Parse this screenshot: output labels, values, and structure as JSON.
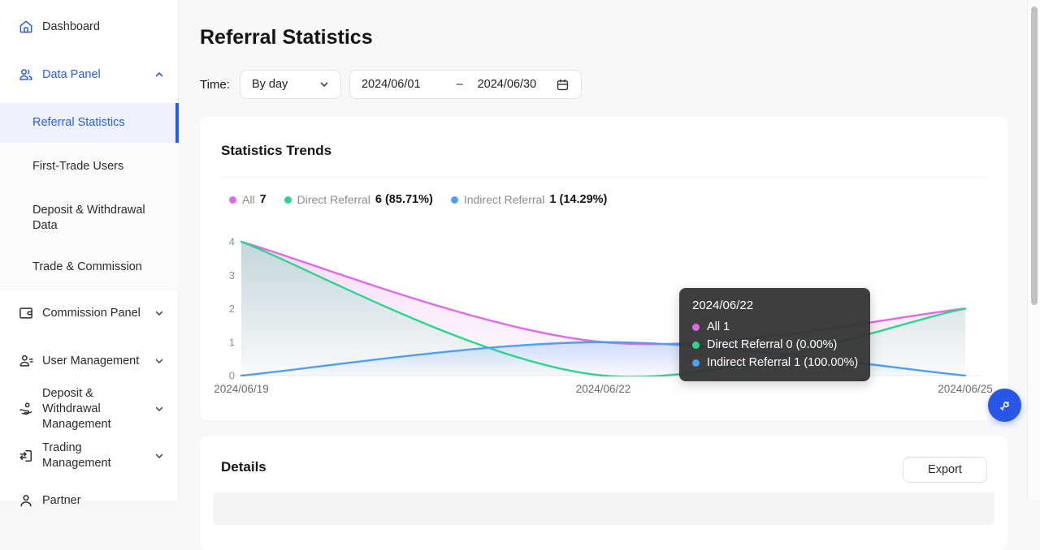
{
  "sidebar": {
    "items": [
      {
        "label": "Dashboard",
        "icon": "home-icon"
      },
      {
        "label": "Data Panel",
        "icon": "users-icon",
        "expanded": true
      },
      {
        "label": "Commission Panel",
        "icon": "panel-icon"
      },
      {
        "label": "User Management",
        "icon": "user-settings-icon"
      },
      {
        "label": "Deposit & Withdrawal Management",
        "icon": "hand-coin-icon"
      },
      {
        "label": "Trading Management",
        "icon": "transfer-icon"
      },
      {
        "label": "Partner",
        "icon": "person-icon"
      }
    ],
    "submenu": {
      "items": [
        {
          "label": "Referral Statistics",
          "selected": true
        },
        {
          "label": "First-Trade Users"
        },
        {
          "label": "Deposit & Withdrawal Data"
        },
        {
          "label": "Trade & Commission"
        }
      ]
    }
  },
  "header": {
    "title": "Referral Statistics"
  },
  "filters": {
    "time_label": "Time:",
    "interval_value": "By day",
    "date_start": "2024/06/01",
    "date_separator": "–",
    "date_end": "2024/06/30"
  },
  "trends_card": {
    "title": "Statistics Trends",
    "legend": [
      {
        "name": "All",
        "value": "7",
        "color": "#de6be2"
      },
      {
        "name": "Direct Referral",
        "value": "6 (85.71%)",
        "color": "#2fd48c"
      },
      {
        "name": "Indirect Referral",
        "value": "1 (14.29%)",
        "color": "#4f9ef2"
      }
    ]
  },
  "chart_data": {
    "type": "area",
    "x": [
      "2024/06/19",
      "2024/06/22",
      "2024/06/25"
    ],
    "series": [
      {
        "name": "All",
        "color": "#de6be2",
        "values": [
          4,
          1,
          2
        ]
      },
      {
        "name": "Direct Referral",
        "color": "#2fd48c",
        "values": [
          4,
          0,
          2
        ]
      },
      {
        "name": "Indirect Referral",
        "color": "#4f9ef2",
        "values": [
          0,
          1,
          0
        ]
      }
    ],
    "ylim": [
      0,
      4
    ],
    "yticks": [
      0,
      1,
      2,
      3,
      4
    ],
    "smooth": true,
    "grid": false,
    "legend_position": "top"
  },
  "tooltip": {
    "title": "2024/06/22",
    "rows": [
      {
        "name": "All",
        "value": "1",
        "color": "#de6be2",
        "text": "All 1"
      },
      {
        "name": "Direct Referral",
        "value": "0 (0.00%)",
        "color": "#2fd48c",
        "text": "Direct Referral 0 (0.00%)"
      },
      {
        "name": "Indirect Referral",
        "value": "1 (100.00%)",
        "color": "#4f9ef2",
        "text": "Indirect Referral 1 (100.00%)"
      }
    ]
  },
  "details_card": {
    "title": "Details",
    "export_label": "Export"
  },
  "colors": {
    "accent": "#2b5ce5",
    "fab": "#2a56e8",
    "tooltip_bg": "#323232"
  }
}
